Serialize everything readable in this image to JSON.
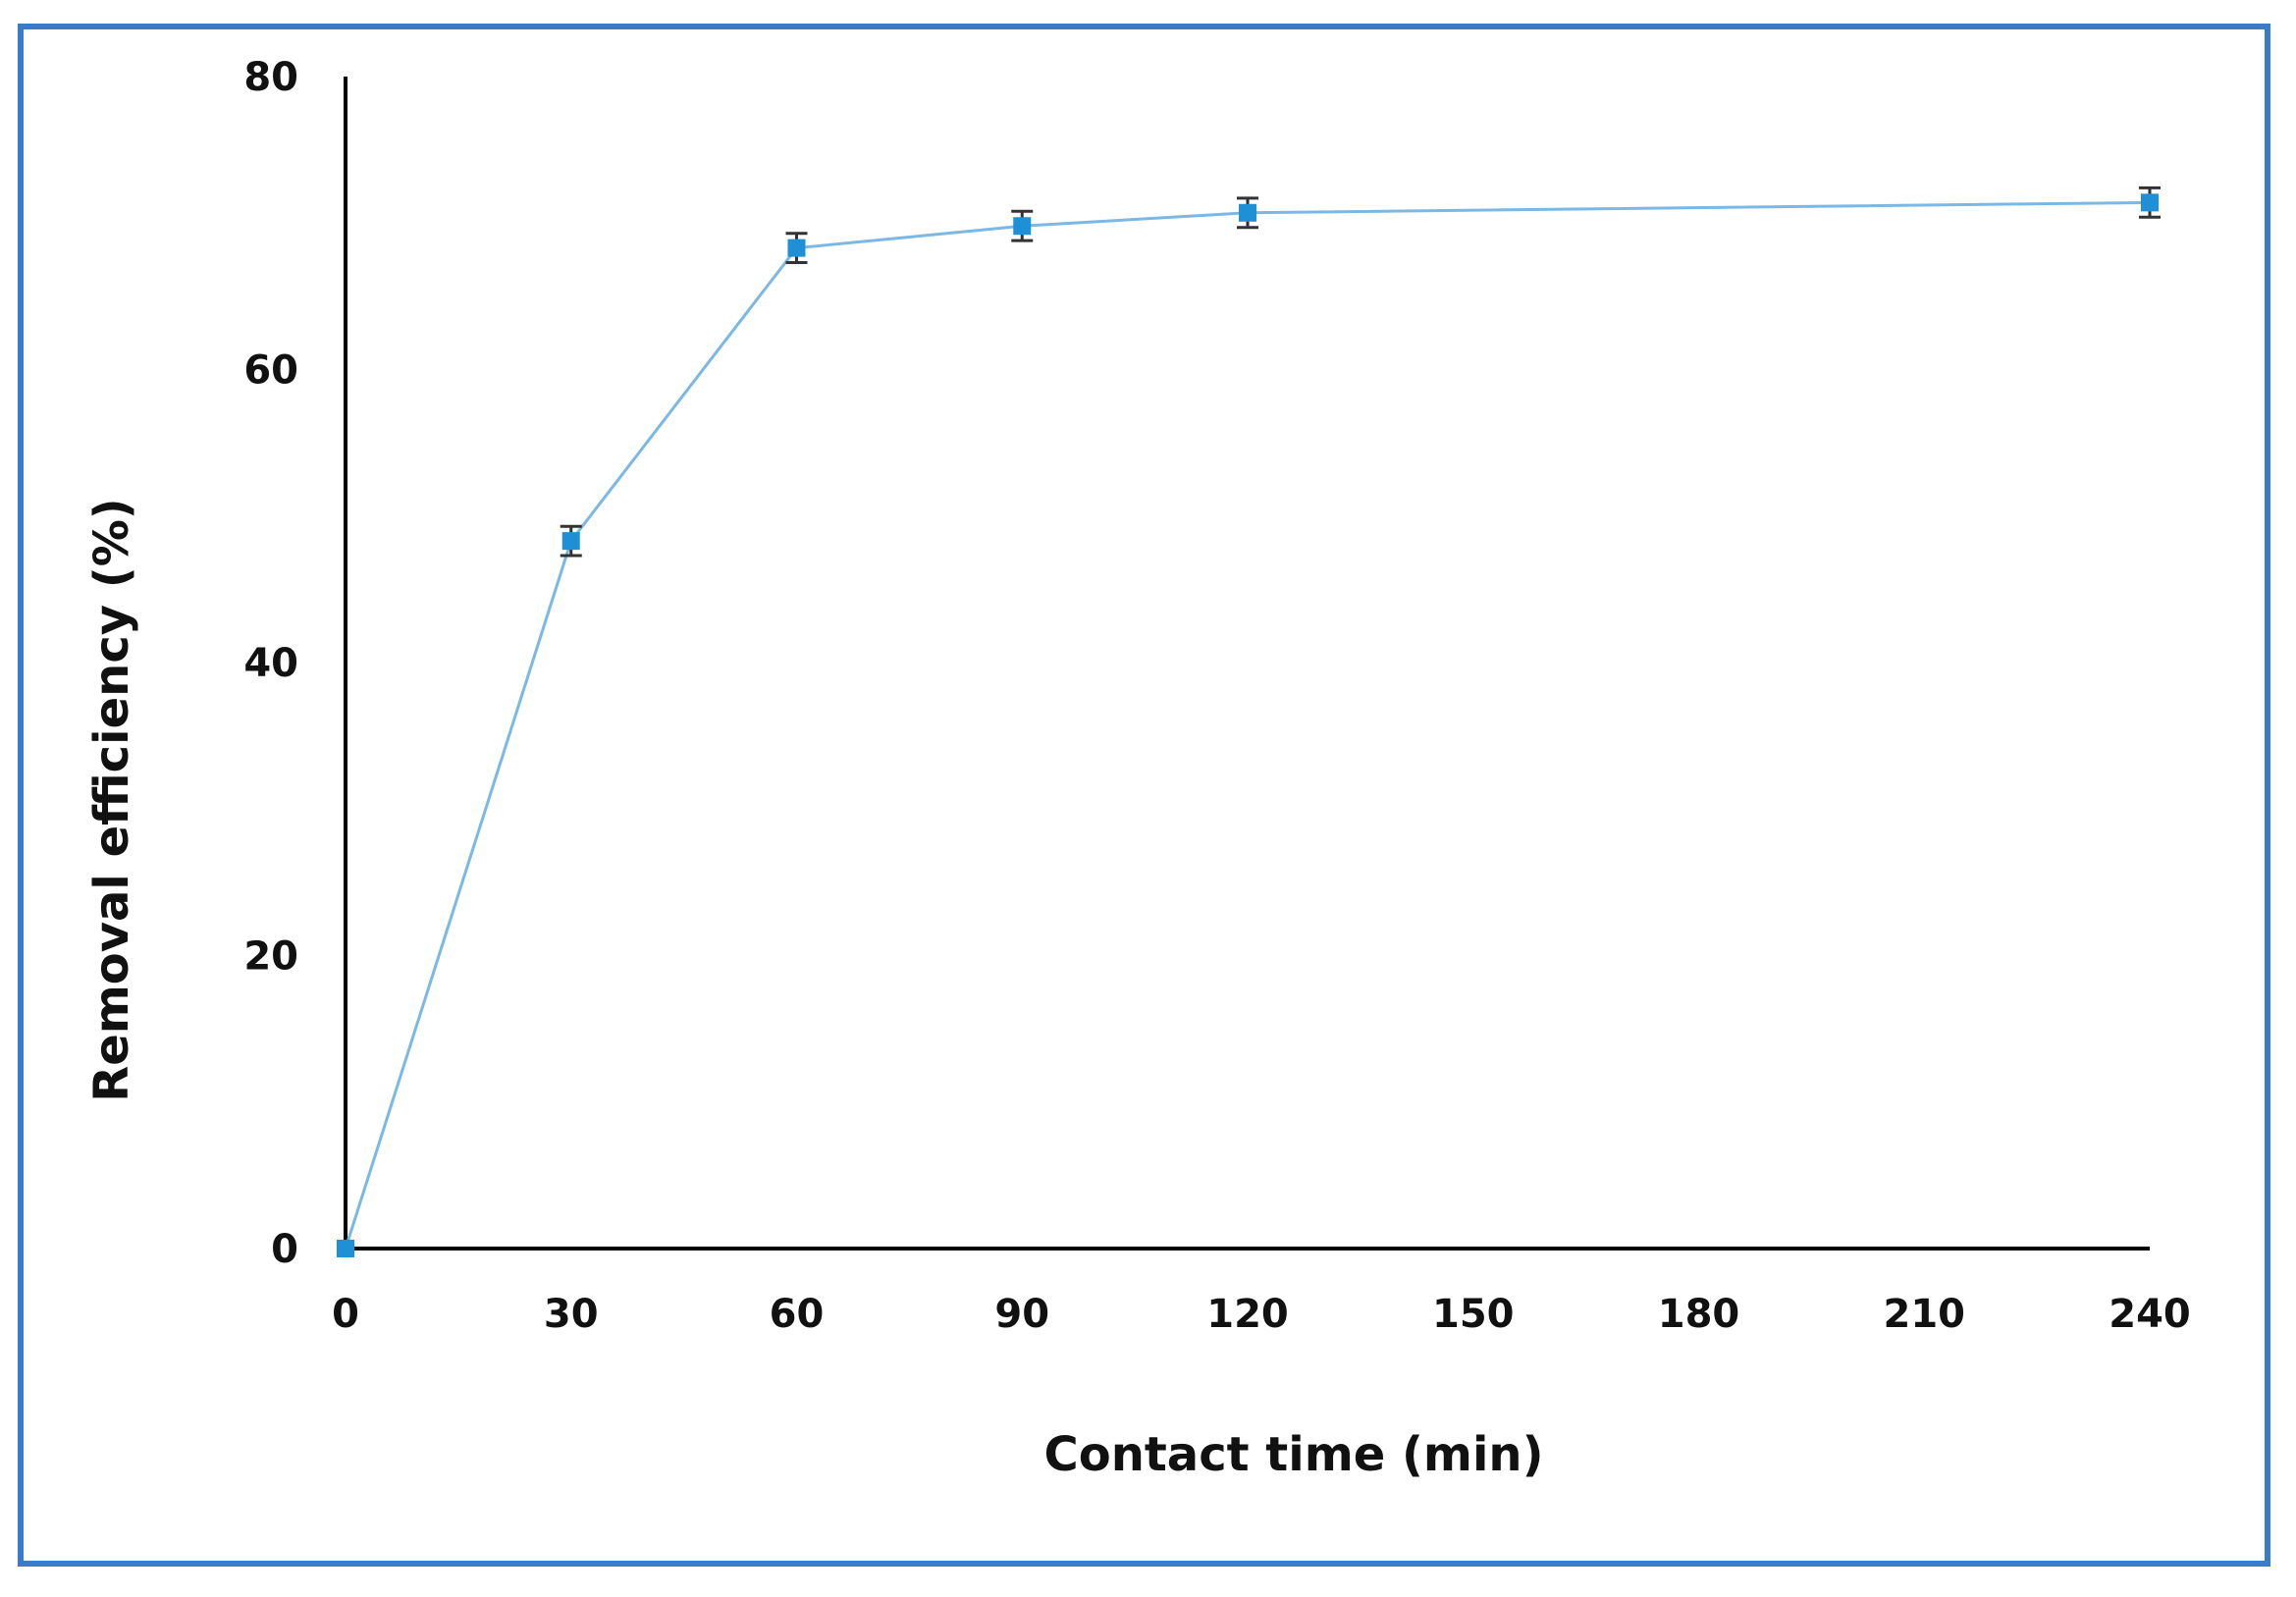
{
  "chart_data": {
    "type": "line",
    "title": "",
    "xlabel": "Contact time (min)",
    "ylabel": "Removal efficiency (%)",
    "xlim": [
      0,
      240
    ],
    "ylim": [
      0,
      80
    ],
    "x_ticks": [
      0,
      30,
      60,
      90,
      120,
      150,
      180,
      210,
      240
    ],
    "y_ticks": [
      0,
      20,
      40,
      60,
      80
    ],
    "grid": false,
    "legend": "none",
    "series": [
      {
        "color": "#7ab8e6",
        "marker_color": "#1f8fd6",
        "error_bar_color": "#333333",
        "points": [
          {
            "x": 0,
            "y": 0,
            "err": 0
          },
          {
            "x": 30,
            "y": 48.3,
            "err": 1.0
          },
          {
            "x": 60,
            "y": 68.3,
            "err": 1.0
          },
          {
            "x": 90,
            "y": 69.8,
            "err": 1.0
          },
          {
            "x": 120,
            "y": 70.7,
            "err": 1.0
          },
          {
            "x": 240,
            "y": 71.4,
            "err": 1.0
          }
        ]
      }
    ]
  }
}
